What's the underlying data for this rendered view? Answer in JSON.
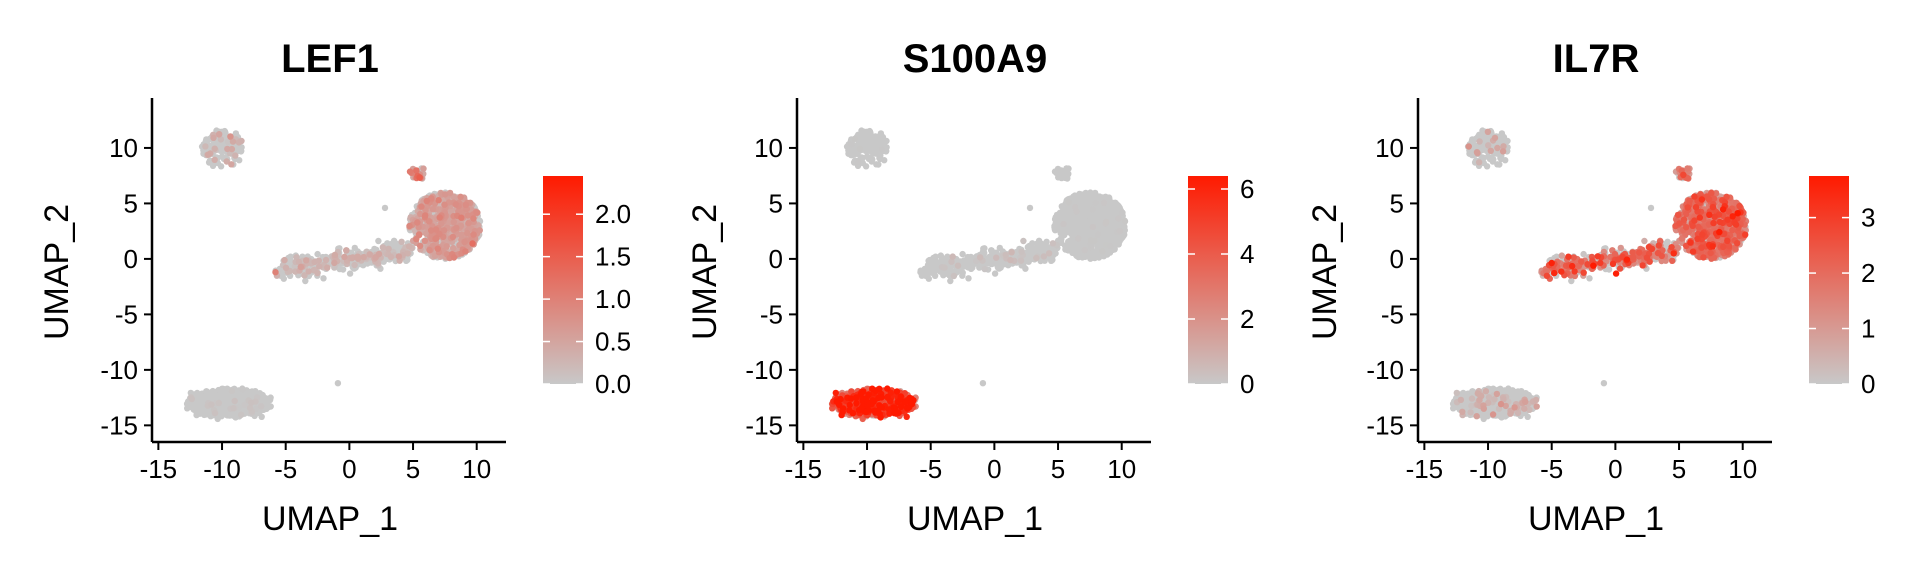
{
  "chart_data": [
    {
      "type": "scatter",
      "title": "LEF1",
      "xlabel": "UMAP_1",
      "ylabel": "UMAP_2",
      "xlim": [
        -15.5,
        12.3
      ],
      "ylim": [
        -16.5,
        14.5
      ],
      "x_ticks": [
        -15,
        -10,
        -5,
        0,
        5,
        10
      ],
      "x_tick_labels": [
        "-15",
        "-10",
        "-5",
        "0",
        "5",
        "10"
      ],
      "y_ticks": [
        -15,
        -10,
        -5,
        0,
        5,
        10
      ],
      "y_tick_labels": [
        "-15",
        "-10",
        "-5",
        "0",
        "5",
        "10"
      ],
      "legend": {
        "position": "right",
        "min": 0,
        "max": 2.45,
        "ticks": [
          0,
          0.5,
          1.0,
          1.5,
          2.0
        ],
        "tick_labels": [
          "0.0",
          "0.5",
          "1.0",
          "1.5",
          "2.0"
        ],
        "low_color": "#c8c8c8",
        "high_color": "#ff1a00"
      },
      "clusters": [
        {
          "region": "big",
          "cx": 7.5,
          "cy": 3.0,
          "rx": 2.8,
          "ry": 3.0,
          "n": 900,
          "expr_mean": 0.45,
          "expr_prob": 0.6
        },
        {
          "region": "tail",
          "x0": -5.5,
          "y0": -1.0,
          "x1": 4.8,
          "y1": 0.8,
          "w": 1.0,
          "n": 420,
          "expr_mean": 0.25,
          "expr_prob": 0.25
        },
        {
          "region": "top-left",
          "cx": -10.0,
          "cy": 10.0,
          "rx": 1.6,
          "ry": 1.6,
          "n": 140,
          "expr_mean": 0.35,
          "expr_prob": 0.2
        },
        {
          "region": "bottom",
          "cx": -9.5,
          "cy": -13.0,
          "rx": 3.3,
          "ry": 1.2,
          "n": 650,
          "expr_mean": 0.05,
          "expr_prob": 0.05
        },
        {
          "region": "top-small",
          "cx": 5.4,
          "cy": 7.8,
          "rx": 0.6,
          "ry": 0.6,
          "n": 25,
          "expr_mean": 0.8,
          "expr_prob": 0.9
        }
      ]
    },
    {
      "type": "scatter",
      "title": "S100A9",
      "xlabel": "UMAP_1",
      "ylabel": "UMAP_2",
      "xlim": [
        -15.5,
        12.3
      ],
      "ylim": [
        -16.5,
        14.5
      ],
      "x_ticks": [
        -15,
        -10,
        -5,
        0,
        5,
        10
      ],
      "x_tick_labels": [
        "-15",
        "-10",
        "-5",
        "0",
        "5",
        "10"
      ],
      "y_ticks": [
        -15,
        -10,
        -5,
        0,
        5,
        10
      ],
      "y_tick_labels": [
        "-15",
        "-10",
        "-5",
        "0",
        "5",
        "10"
      ],
      "legend": {
        "position": "right",
        "min": 0,
        "max": 6.4,
        "ticks": [
          0,
          2,
          4,
          6
        ],
        "tick_labels": [
          "0",
          "2",
          "4",
          "6"
        ],
        "low_color": "#c8c8c8",
        "high_color": "#ff1a00"
      },
      "clusters": [
        {
          "region": "big",
          "cx": 7.5,
          "cy": 3.0,
          "rx": 2.8,
          "ry": 3.0,
          "n": 900,
          "expr_mean": 0.05,
          "expr_prob": 0.03
        },
        {
          "region": "tail",
          "x0": -5.5,
          "y0": -1.0,
          "x1": 4.8,
          "y1": 0.8,
          "w": 1.0,
          "n": 420,
          "expr_mean": 0.3,
          "expr_prob": 0.08
        },
        {
          "region": "top-left",
          "cx": -10.0,
          "cy": 10.0,
          "rx": 1.6,
          "ry": 1.6,
          "n": 140,
          "expr_mean": 0.05,
          "expr_prob": 0.02
        },
        {
          "region": "bottom",
          "cx": -9.5,
          "cy": -13.0,
          "rx": 3.3,
          "ry": 1.2,
          "n": 650,
          "expr_mean": 3.8,
          "expr_prob": 1.0
        },
        {
          "region": "top-small",
          "cx": 5.4,
          "cy": 7.8,
          "rx": 0.6,
          "ry": 0.6,
          "n": 25,
          "expr_mean": 0.0,
          "expr_prob": 0.0
        }
      ]
    },
    {
      "type": "scatter",
      "title": "IL7R",
      "xlabel": "UMAP_1",
      "ylabel": "UMAP_2",
      "xlim": [
        -15.5,
        12.3
      ],
      "ylim": [
        -16.5,
        14.5
      ],
      "x_ticks": [
        -15,
        -10,
        -5,
        0,
        5,
        10
      ],
      "x_tick_labels": [
        "-15",
        "-10",
        "-5",
        "0",
        "5",
        "10"
      ],
      "y_ticks": [
        -15,
        -10,
        -5,
        0,
        5,
        10
      ],
      "y_tick_labels": [
        "-15",
        "-10",
        "-5",
        "0",
        "5",
        "10"
      ],
      "legend": {
        "position": "right",
        "min": 0,
        "max": 3.75,
        "ticks": [
          0,
          1,
          2,
          3
        ],
        "tick_labels": [
          "0",
          "1",
          "2",
          "3"
        ],
        "low_color": "#c8c8c8",
        "high_color": "#ff1a00"
      },
      "clusters": [
        {
          "region": "big",
          "cx": 7.5,
          "cy": 3.0,
          "rx": 2.8,
          "ry": 3.0,
          "n": 900,
          "expr_mean": 1.5,
          "expr_prob": 0.85
        },
        {
          "region": "tail",
          "x0": -5.5,
          "y0": -1.0,
          "x1": 4.8,
          "y1": 0.8,
          "w": 1.0,
          "n": 420,
          "expr_mean": 1.6,
          "expr_prob": 0.55
        },
        {
          "region": "top-left",
          "cx": -10.0,
          "cy": 10.0,
          "rx": 1.6,
          "ry": 1.6,
          "n": 140,
          "expr_mean": 0.6,
          "expr_prob": 0.15
        },
        {
          "region": "bottom",
          "cx": -9.5,
          "cy": -13.0,
          "rx": 3.3,
          "ry": 1.2,
          "n": 650,
          "expr_mean": 0.5,
          "expr_prob": 0.08
        },
        {
          "region": "top-small",
          "cx": 5.4,
          "cy": 7.8,
          "rx": 0.6,
          "ry": 0.6,
          "n": 25,
          "expr_mean": 1.6,
          "expr_prob": 0.9
        }
      ]
    }
  ]
}
